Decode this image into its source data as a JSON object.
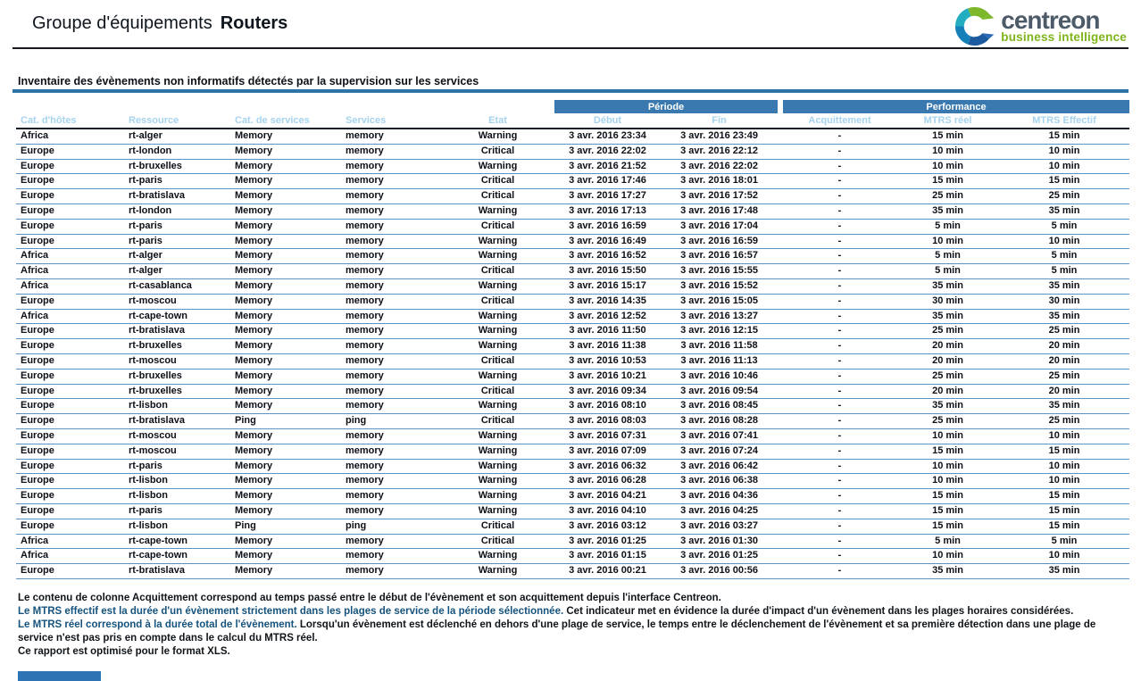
{
  "header": {
    "title_prefix": "Groupe d'équipements",
    "title_group": "Routers"
  },
  "logo": {
    "name": "centreon",
    "tagline": "business intelligence",
    "icon": "centreon-c-icon"
  },
  "report": {
    "section_title": "Inventaire des évènements non informatifs détectés par la supervision sur les services"
  },
  "table": {
    "group_headers": {
      "periode": "Période",
      "performance": "Performance"
    },
    "columns": [
      "Cat. d'hôtes",
      "Ressource",
      "Cat. de services",
      "Services",
      "Etat",
      "Début",
      "Fin",
      "Acquittement",
      "MTRS réel",
      "MTRS Effectif"
    ],
    "rows": [
      {
        "host_category": "Africa",
        "resource": "rt-alger",
        "service_category": "Memory",
        "service": "memory",
        "state": "Warning",
        "start": "3 avr. 2016 23:34",
        "end": "3 avr. 2016 23:49",
        "ack": "-",
        "mtrs_real": "15 min",
        "mtrs_effective": "15 min"
      },
      {
        "host_category": "Europe",
        "resource": "rt-london",
        "service_category": "Memory",
        "service": "memory",
        "state": "Critical",
        "start": "3 avr. 2016 22:02",
        "end": "3 avr. 2016 22:12",
        "ack": "-",
        "mtrs_real": "10 min",
        "mtrs_effective": "10 min"
      },
      {
        "host_category": "Europe",
        "resource": "rt-bruxelles",
        "service_category": "Memory",
        "service": "memory",
        "state": "Warning",
        "start": "3 avr. 2016 21:52",
        "end": "3 avr. 2016 22:02",
        "ack": "-",
        "mtrs_real": "10 min",
        "mtrs_effective": "10 min"
      },
      {
        "host_category": "Europe",
        "resource": "rt-paris",
        "service_category": "Memory",
        "service": "memory",
        "state": "Critical",
        "start": "3 avr. 2016 17:46",
        "end": "3 avr. 2016 18:01",
        "ack": "-",
        "mtrs_real": "15 min",
        "mtrs_effective": "15 min"
      },
      {
        "host_category": "Europe",
        "resource": "rt-bratislava",
        "service_category": "Memory",
        "service": "memory",
        "state": "Critical",
        "start": "3 avr. 2016 17:27",
        "end": "3 avr. 2016 17:52",
        "ack": "-",
        "mtrs_real": "25 min",
        "mtrs_effective": "25 min"
      },
      {
        "host_category": "Europe",
        "resource": "rt-london",
        "service_category": "Memory",
        "service": "memory",
        "state": "Warning",
        "start": "3 avr. 2016 17:13",
        "end": "3 avr. 2016 17:48",
        "ack": "-",
        "mtrs_real": "35 min",
        "mtrs_effective": "35 min"
      },
      {
        "host_category": "Europe",
        "resource": "rt-paris",
        "service_category": "Memory",
        "service": "memory",
        "state": "Critical",
        "start": "3 avr. 2016 16:59",
        "end": "3 avr. 2016 17:04",
        "ack": "-",
        "mtrs_real": "5 min",
        "mtrs_effective": "5 min"
      },
      {
        "host_category": "Europe",
        "resource": "rt-paris",
        "service_category": "Memory",
        "service": "memory",
        "state": "Warning",
        "start": "3 avr. 2016 16:49",
        "end": "3 avr. 2016 16:59",
        "ack": "-",
        "mtrs_real": "10 min",
        "mtrs_effective": "10 min"
      },
      {
        "host_category": "Africa",
        "resource": "rt-alger",
        "service_category": "Memory",
        "service": "memory",
        "state": "Warning",
        "start": "3 avr. 2016 16:52",
        "end": "3 avr. 2016 16:57",
        "ack": "-",
        "mtrs_real": "5 min",
        "mtrs_effective": "5 min"
      },
      {
        "host_category": "Africa",
        "resource": "rt-alger",
        "service_category": "Memory",
        "service": "memory",
        "state": "Critical",
        "start": "3 avr. 2016 15:50",
        "end": "3 avr. 2016 15:55",
        "ack": "-",
        "mtrs_real": "5 min",
        "mtrs_effective": "5 min"
      },
      {
        "host_category": "Africa",
        "resource": "rt-casablanca",
        "service_category": "Memory",
        "service": "memory",
        "state": "Warning",
        "start": "3 avr. 2016 15:17",
        "end": "3 avr. 2016 15:52",
        "ack": "-",
        "mtrs_real": "35 min",
        "mtrs_effective": "35 min"
      },
      {
        "host_category": "Europe",
        "resource": "rt-moscou",
        "service_category": "Memory",
        "service": "memory",
        "state": "Critical",
        "start": "3 avr. 2016 14:35",
        "end": "3 avr. 2016 15:05",
        "ack": "-",
        "mtrs_real": "30 min",
        "mtrs_effective": "30 min"
      },
      {
        "host_category": "Africa",
        "resource": "rt-cape-town",
        "service_category": "Memory",
        "service": "memory",
        "state": "Warning",
        "start": "3 avr. 2016 12:52",
        "end": "3 avr. 2016 13:27",
        "ack": "-",
        "mtrs_real": "35 min",
        "mtrs_effective": "35 min"
      },
      {
        "host_category": "Europe",
        "resource": "rt-bratislava",
        "service_category": "Memory",
        "service": "memory",
        "state": "Warning",
        "start": "3 avr. 2016 11:50",
        "end": "3 avr. 2016 12:15",
        "ack": "-",
        "mtrs_real": "25 min",
        "mtrs_effective": "25 min"
      },
      {
        "host_category": "Europe",
        "resource": "rt-bruxelles",
        "service_category": "Memory",
        "service": "memory",
        "state": "Warning",
        "start": "3 avr. 2016 11:38",
        "end": "3 avr. 2016 11:58",
        "ack": "-",
        "mtrs_real": "20 min",
        "mtrs_effective": "20 min"
      },
      {
        "host_category": "Europe",
        "resource": "rt-moscou",
        "service_category": "Memory",
        "service": "memory",
        "state": "Critical",
        "start": "3 avr. 2016 10:53",
        "end": "3 avr. 2016 11:13",
        "ack": "-",
        "mtrs_real": "20 min",
        "mtrs_effective": "20 min"
      },
      {
        "host_category": "Europe",
        "resource": "rt-bruxelles",
        "service_category": "Memory",
        "service": "memory",
        "state": "Warning",
        "start": "3 avr. 2016 10:21",
        "end": "3 avr. 2016 10:46",
        "ack": "-",
        "mtrs_real": "25 min",
        "mtrs_effective": "25 min"
      },
      {
        "host_category": "Europe",
        "resource": "rt-bruxelles",
        "service_category": "Memory",
        "service": "memory",
        "state": "Critical",
        "start": "3 avr. 2016 09:34",
        "end": "3 avr. 2016 09:54",
        "ack": "-",
        "mtrs_real": "20 min",
        "mtrs_effective": "20 min"
      },
      {
        "host_category": "Europe",
        "resource": "rt-lisbon",
        "service_category": "Memory",
        "service": "memory",
        "state": "Warning",
        "start": "3 avr. 2016 08:10",
        "end": "3 avr. 2016 08:45",
        "ack": "-",
        "mtrs_real": "35 min",
        "mtrs_effective": "35 min"
      },
      {
        "host_category": "Europe",
        "resource": "rt-bratislava",
        "service_category": "Ping",
        "service": "ping",
        "state": "Critical",
        "start": "3 avr. 2016 08:03",
        "end": "3 avr. 2016 08:28",
        "ack": "-",
        "mtrs_real": "25 min",
        "mtrs_effective": "25 min"
      },
      {
        "host_category": "Europe",
        "resource": "rt-moscou",
        "service_category": "Memory",
        "service": "memory",
        "state": "Warning",
        "start": "3 avr. 2016 07:31",
        "end": "3 avr. 2016 07:41",
        "ack": "-",
        "mtrs_real": "10 min",
        "mtrs_effective": "10 min"
      },
      {
        "host_category": "Europe",
        "resource": "rt-moscou",
        "service_category": "Memory",
        "service": "memory",
        "state": "Warning",
        "start": "3 avr. 2016 07:09",
        "end": "3 avr. 2016 07:24",
        "ack": "-",
        "mtrs_real": "15 min",
        "mtrs_effective": "15 min"
      },
      {
        "host_category": "Europe",
        "resource": "rt-paris",
        "service_category": "Memory",
        "service": "memory",
        "state": "Warning",
        "start": "3 avr. 2016 06:32",
        "end": "3 avr. 2016 06:42",
        "ack": "-",
        "mtrs_real": "10 min",
        "mtrs_effective": "10 min"
      },
      {
        "host_category": "Europe",
        "resource": "rt-lisbon",
        "service_category": "Memory",
        "service": "memory",
        "state": "Warning",
        "start": "3 avr. 2016 06:28",
        "end": "3 avr. 2016 06:38",
        "ack": "-",
        "mtrs_real": "10 min",
        "mtrs_effective": "10 min"
      },
      {
        "host_category": "Europe",
        "resource": "rt-lisbon",
        "service_category": "Memory",
        "service": "memory",
        "state": "Warning",
        "start": "3 avr. 2016 04:21",
        "end": "3 avr. 2016 04:36",
        "ack": "-",
        "mtrs_real": "15 min",
        "mtrs_effective": "15 min"
      },
      {
        "host_category": "Europe",
        "resource": "rt-paris",
        "service_category": "Memory",
        "service": "memory",
        "state": "Warning",
        "start": "3 avr. 2016 04:10",
        "end": "3 avr. 2016 04:25",
        "ack": "-",
        "mtrs_real": "15 min",
        "mtrs_effective": "15 min"
      },
      {
        "host_category": "Europe",
        "resource": "rt-lisbon",
        "service_category": "Ping",
        "service": "ping",
        "state": "Critical",
        "start": "3 avr. 2016 03:12",
        "end": "3 avr. 2016 03:27",
        "ack": "-",
        "mtrs_real": "15 min",
        "mtrs_effective": "15 min"
      },
      {
        "host_category": "Africa",
        "resource": "rt-cape-town",
        "service_category": "Memory",
        "service": "memory",
        "state": "Critical",
        "start": "3 avr. 2016 01:25",
        "end": "3 avr. 2016 01:30",
        "ack": "-",
        "mtrs_real": "5 min",
        "mtrs_effective": "5 min"
      },
      {
        "host_category": "Africa",
        "resource": "rt-cape-town",
        "service_category": "Memory",
        "service": "memory",
        "state": "Warning",
        "start": "3 avr. 2016 01:15",
        "end": "3 avr. 2016 01:25",
        "ack": "-",
        "mtrs_real": "10 min",
        "mtrs_effective": "10 min"
      },
      {
        "host_category": "Europe",
        "resource": "rt-bratislava",
        "service_category": "Memory",
        "service": "memory",
        "state": "Warning",
        "start": "3 avr. 2016 00:21",
        "end": "3 avr. 2016 00:56",
        "ack": "-",
        "mtrs_real": "35 min",
        "mtrs_effective": "35 min"
      }
    ]
  },
  "footer": {
    "lines": [
      [
        {
          "text": "Le contenu de colonne Acquittement correspond au temps passé entre le début de l'évènement et son acquittement depuis l'interface Centreon.",
          "em": false
        }
      ],
      [
        {
          "text": "Le MTRS effectif est la durée d'un évènement strictement dans les plages de service de la période sélectionnée.",
          "em": true
        },
        {
          "text": " Cet indicateur met en évidence la durée d'impact d'un évènement dans les plages horaires considérées.",
          "em": false
        }
      ],
      [
        {
          "text": "Le MTRS réel correspond à la durée total de l'évènement.",
          "em": true
        },
        {
          "text": " Lorsqu'un évènement est déclenché en dehors d'une plage de service, le temps entre le déclenchement de l'évènement et sa première détection dans une plage de service n'est pas pris en compte dans le calcul du MTRS réel.",
          "em": false
        }
      ],
      [
        {
          "text": "Ce rapport est optimisé pour le format XLS.",
          "em": false
        }
      ]
    ]
  },
  "colors": {
    "group_header_bar": "#3a79af",
    "column_header_text": "#a7d3ee",
    "row_separator": "#5b94c4",
    "section_rule": "#2e73a6",
    "header_rule": "#141d28",
    "warning": "#f79b3f",
    "critical": "#e4295b",
    "note_term": "#16537e",
    "logo_green": "#7db72a",
    "logo_teal": "#23adc0",
    "logo_blue": "#147fb8",
    "logo_navy": "#1b5a9e",
    "logo_text": "#4d5b68",
    "logo_tagline": "#7fb41c",
    "bottom_bar": "#2e74b5"
  }
}
